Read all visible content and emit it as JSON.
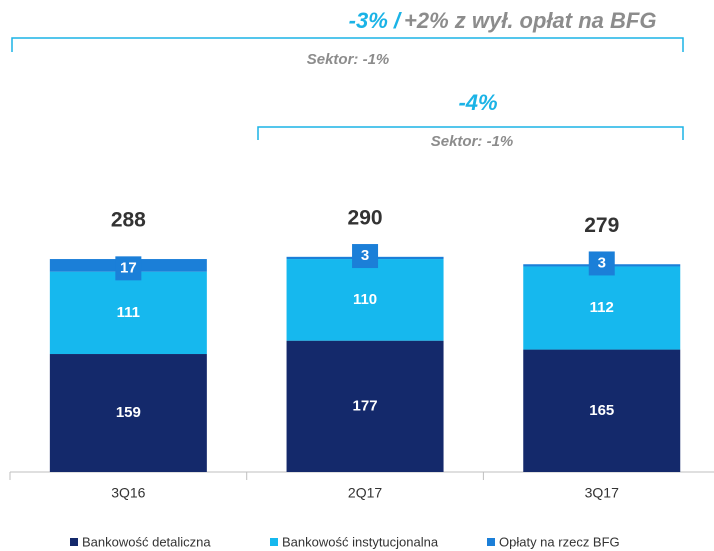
{
  "chart_data": {
    "type": "bar",
    "stacked": true,
    "categories": [
      "3Q16",
      "2Q17",
      "3Q17"
    ],
    "series": [
      {
        "name": "Bankowość detaliczna",
        "color": "#14296b",
        "values": [
          159,
          177,
          165
        ]
      },
      {
        "name": "Bankowość instytucjonalna",
        "color": "#16b8ee",
        "values": [
          111,
          110,
          112
        ]
      },
      {
        "name": "Opłaty na rzecz BFG",
        "color": "#1b7fd8",
        "values": [
          17,
          3,
          3
        ]
      }
    ],
    "totals": [
      288,
      290,
      279
    ],
    "annotations": [
      "-3% /",
      "+2% z wył. opłat na BFG",
      "Sektor: -1%",
      "-4%",
      "Sektor: -1%"
    ]
  }
}
